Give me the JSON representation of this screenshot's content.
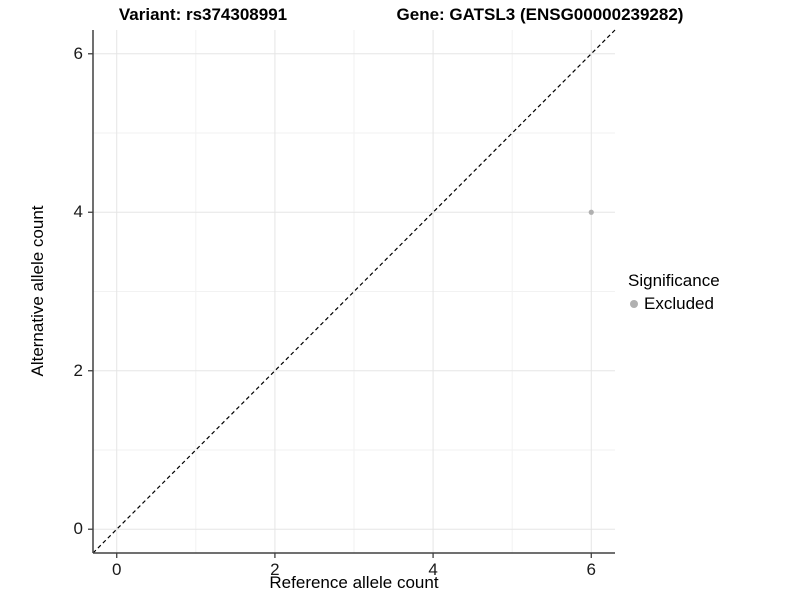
{
  "chart_data": {
    "type": "scatter",
    "title_left": "Variant: rs374308991",
    "title_right": "Gene: GATSL3 (ENSG00000239282)",
    "xlabel": "Reference allele count",
    "ylabel": "Alternative allele count",
    "xlim": [
      -0.3,
      6.3
    ],
    "ylim": [
      -0.3,
      6.3
    ],
    "x_ticks": [
      0,
      2,
      4,
      6
    ],
    "y_ticks": [
      0,
      2,
      4,
      6
    ],
    "x_minor_ticks": [
      1,
      3,
      5
    ],
    "y_minor_ticks": [
      1,
      3,
      5
    ],
    "grid": "major+minor",
    "points": [
      {
        "x": 6,
        "y": 4,
        "significance": "Excluded"
      }
    ],
    "identity_line": {
      "equation": "y = x",
      "style": "dashed"
    },
    "legend": {
      "title": "Significance",
      "position": "right",
      "entries": [
        {
          "label": "Excluded",
          "color": "#b0b0b0"
        }
      ]
    }
  },
  "colors": {
    "background": "#ffffff",
    "grid_major": "#e5e5e5",
    "grid_minor": "#f2f2f2",
    "axis_line": "#404040",
    "tick_mark": "#404040",
    "text": "#000000",
    "point": "#b0b0b0",
    "identity_line": "#000000"
  }
}
